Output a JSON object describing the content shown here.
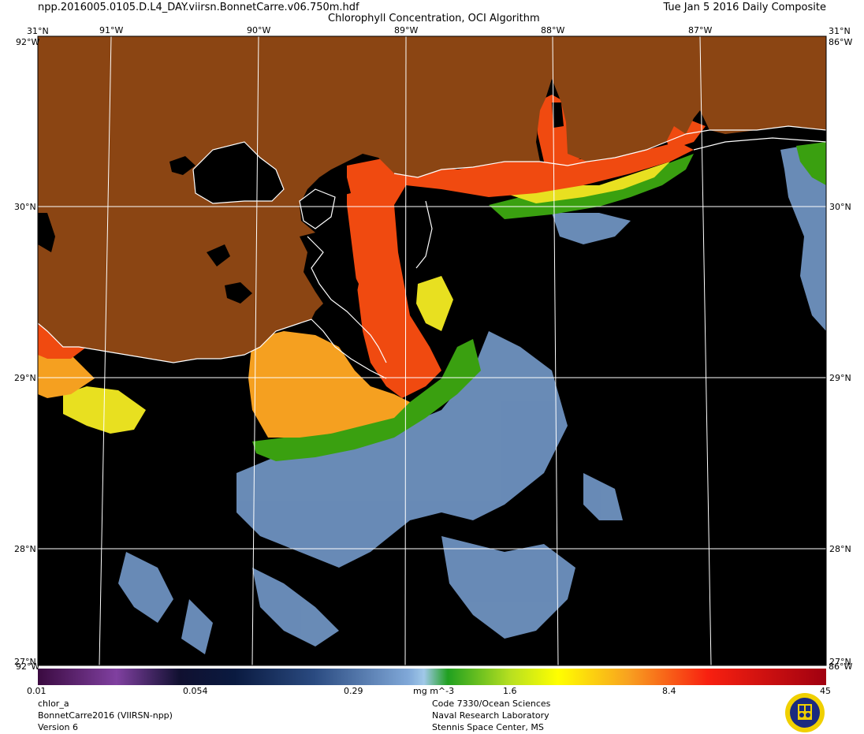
{
  "header": {
    "filename": "npp.2016005.0105.D.L4_DAY.viirsn.BonnetCarre.v06.750m.hdf",
    "title": "Chlorophyll Concentration, OCI Algorithm",
    "date": "Tue Jan  5 2016 Daily Composite"
  },
  "map": {
    "top_lon_labels": [
      "91°W",
      "90°W",
      "89°W",
      "88°W",
      "87°W"
    ],
    "lat_labels": [
      "30°N",
      "29°N",
      "28°N"
    ],
    "corner_top_left": "31°N",
    "corner_top_right": "31°N",
    "corner_left_top_lon": "92°W",
    "corner_right_top_lon": "86°W",
    "corner_bottom_left_lat": "27°N",
    "corner_bottom_left_lon": "92°W",
    "corner_bottom_right_lat": "27°N",
    "corner_bottom_right_lon": "86°W",
    "colors": {
      "land": "#8B4513",
      "ocean": "#000000",
      "coastline": "#ffffff",
      "grid": "#ffffff"
    }
  },
  "colorbar": {
    "tick_labels": [
      "0.01",
      "0.054",
      "0.29",
      "1.6",
      "8.4",
      "45"
    ],
    "units": "mg m^-3",
    "scale": "log",
    "range": [
      0.01,
      45
    ]
  },
  "footer": {
    "product": "chlor_a",
    "region": "BonnetCarre2016 (VIIRSN-npp)",
    "version": "Version 6",
    "org_line1": "Code 7330/Ocean Sciences",
    "org_line2": "Naval Research Laboratory",
    "org_line3": "Stennis Space Center, MS"
  }
}
